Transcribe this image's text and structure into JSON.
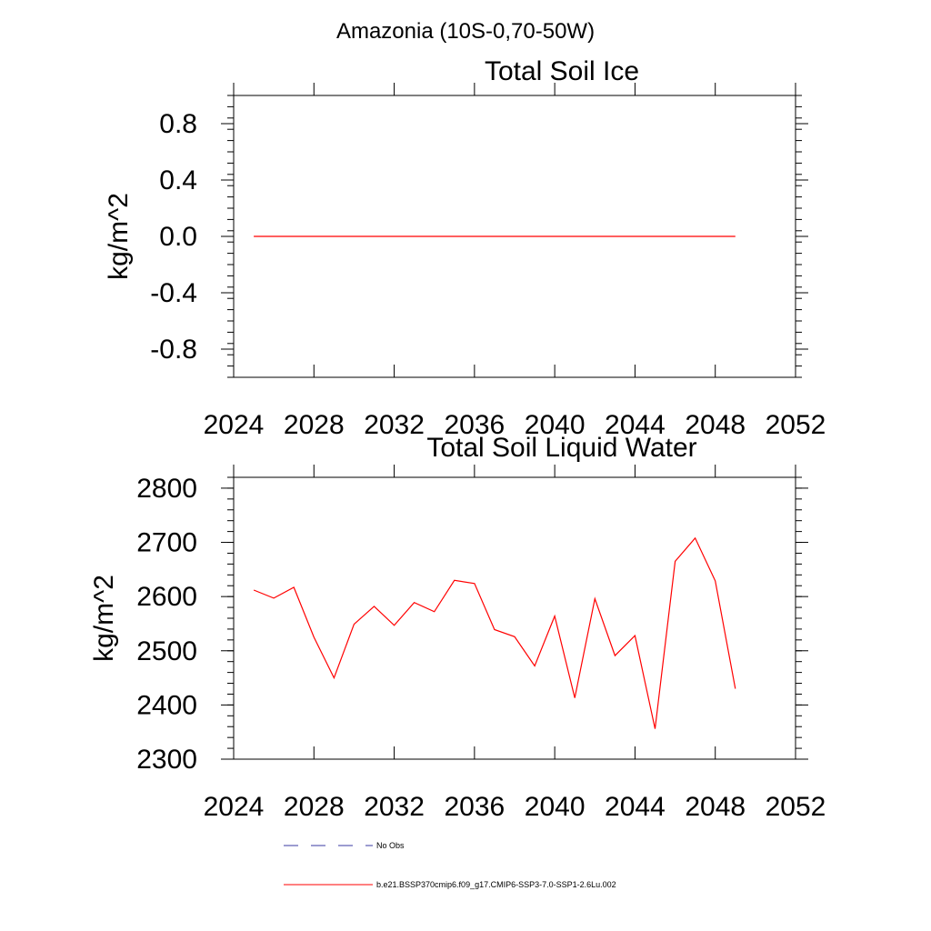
{
  "figure_title": "Amazonia (10S-0,70-50W)",
  "chart_data": [
    {
      "type": "line",
      "title": "Total Soil Ice",
      "xlabel": "",
      "ylabel": "kg/m^2",
      "xlim": [
        2024,
        2052
      ],
      "ylim": [
        -1.0,
        1.0
      ],
      "xticks": [
        "2024",
        "2028",
        "2032",
        "2036",
        "2040",
        "2044",
        "2048",
        "2052"
      ],
      "yticks": [
        "0.8",
        "0.4",
        "0.0",
        "-0.4",
        "-0.8"
      ],
      "series": [
        {
          "color": "#ff0000",
          "x": [
            2025,
            2026,
            2027,
            2028,
            2029,
            2030,
            2031,
            2032,
            2033,
            2034,
            2035,
            2036,
            2037,
            2038,
            2039,
            2040,
            2041,
            2042,
            2043,
            2044,
            2045,
            2046,
            2047,
            2048,
            2049
          ],
          "values": [
            0,
            0,
            0,
            0,
            0,
            0,
            0,
            0,
            0,
            0,
            0,
            0,
            0,
            0,
            0,
            0,
            0,
            0,
            0,
            0,
            0,
            0,
            0,
            0,
            0
          ]
        }
      ]
    },
    {
      "type": "line",
      "title": "Total Soil Liquid Water",
      "xlabel": "",
      "ylabel": "kg/m^2",
      "xlim": [
        2024,
        2052
      ],
      "ylim": [
        2300,
        2820
      ],
      "xticks": [
        "2024",
        "2028",
        "2032",
        "2036",
        "2040",
        "2044",
        "2048",
        "2052"
      ],
      "yticks": [
        "2800",
        "2700",
        "2600",
        "2500",
        "2400",
        "2300"
      ],
      "series": [
        {
          "color": "#ff0000",
          "x": [
            2025,
            2026,
            2027,
            2028,
            2029,
            2030,
            2031,
            2032,
            2033,
            2034,
            2035,
            2036,
            2037,
            2038,
            2039,
            2040,
            2041,
            2042,
            2043,
            2044,
            2045,
            2046,
            2047,
            2048,
            2049
          ],
          "values": [
            2612,
            2597,
            2617,
            2525,
            2450,
            2549,
            2582,
            2547,
            2589,
            2572,
            2630,
            2624,
            2539,
            2526,
            2472,
            2564,
            2413,
            2596,
            2491,
            2528,
            2356,
            2665,
            2708,
            2629,
            2430
          ]
        }
      ]
    }
  ],
  "legend": {
    "position": "bottom",
    "items": [
      {
        "label": "No Obs",
        "color": "#3a3aa0",
        "style": "dashed"
      },
      {
        "label": "b.e21.BSSP370cmip6.f09_g17.CMIP6-SSP3-7.0-SSP1-2.6Lu.002",
        "color": "#ff0000",
        "style": "solid"
      }
    ]
  }
}
